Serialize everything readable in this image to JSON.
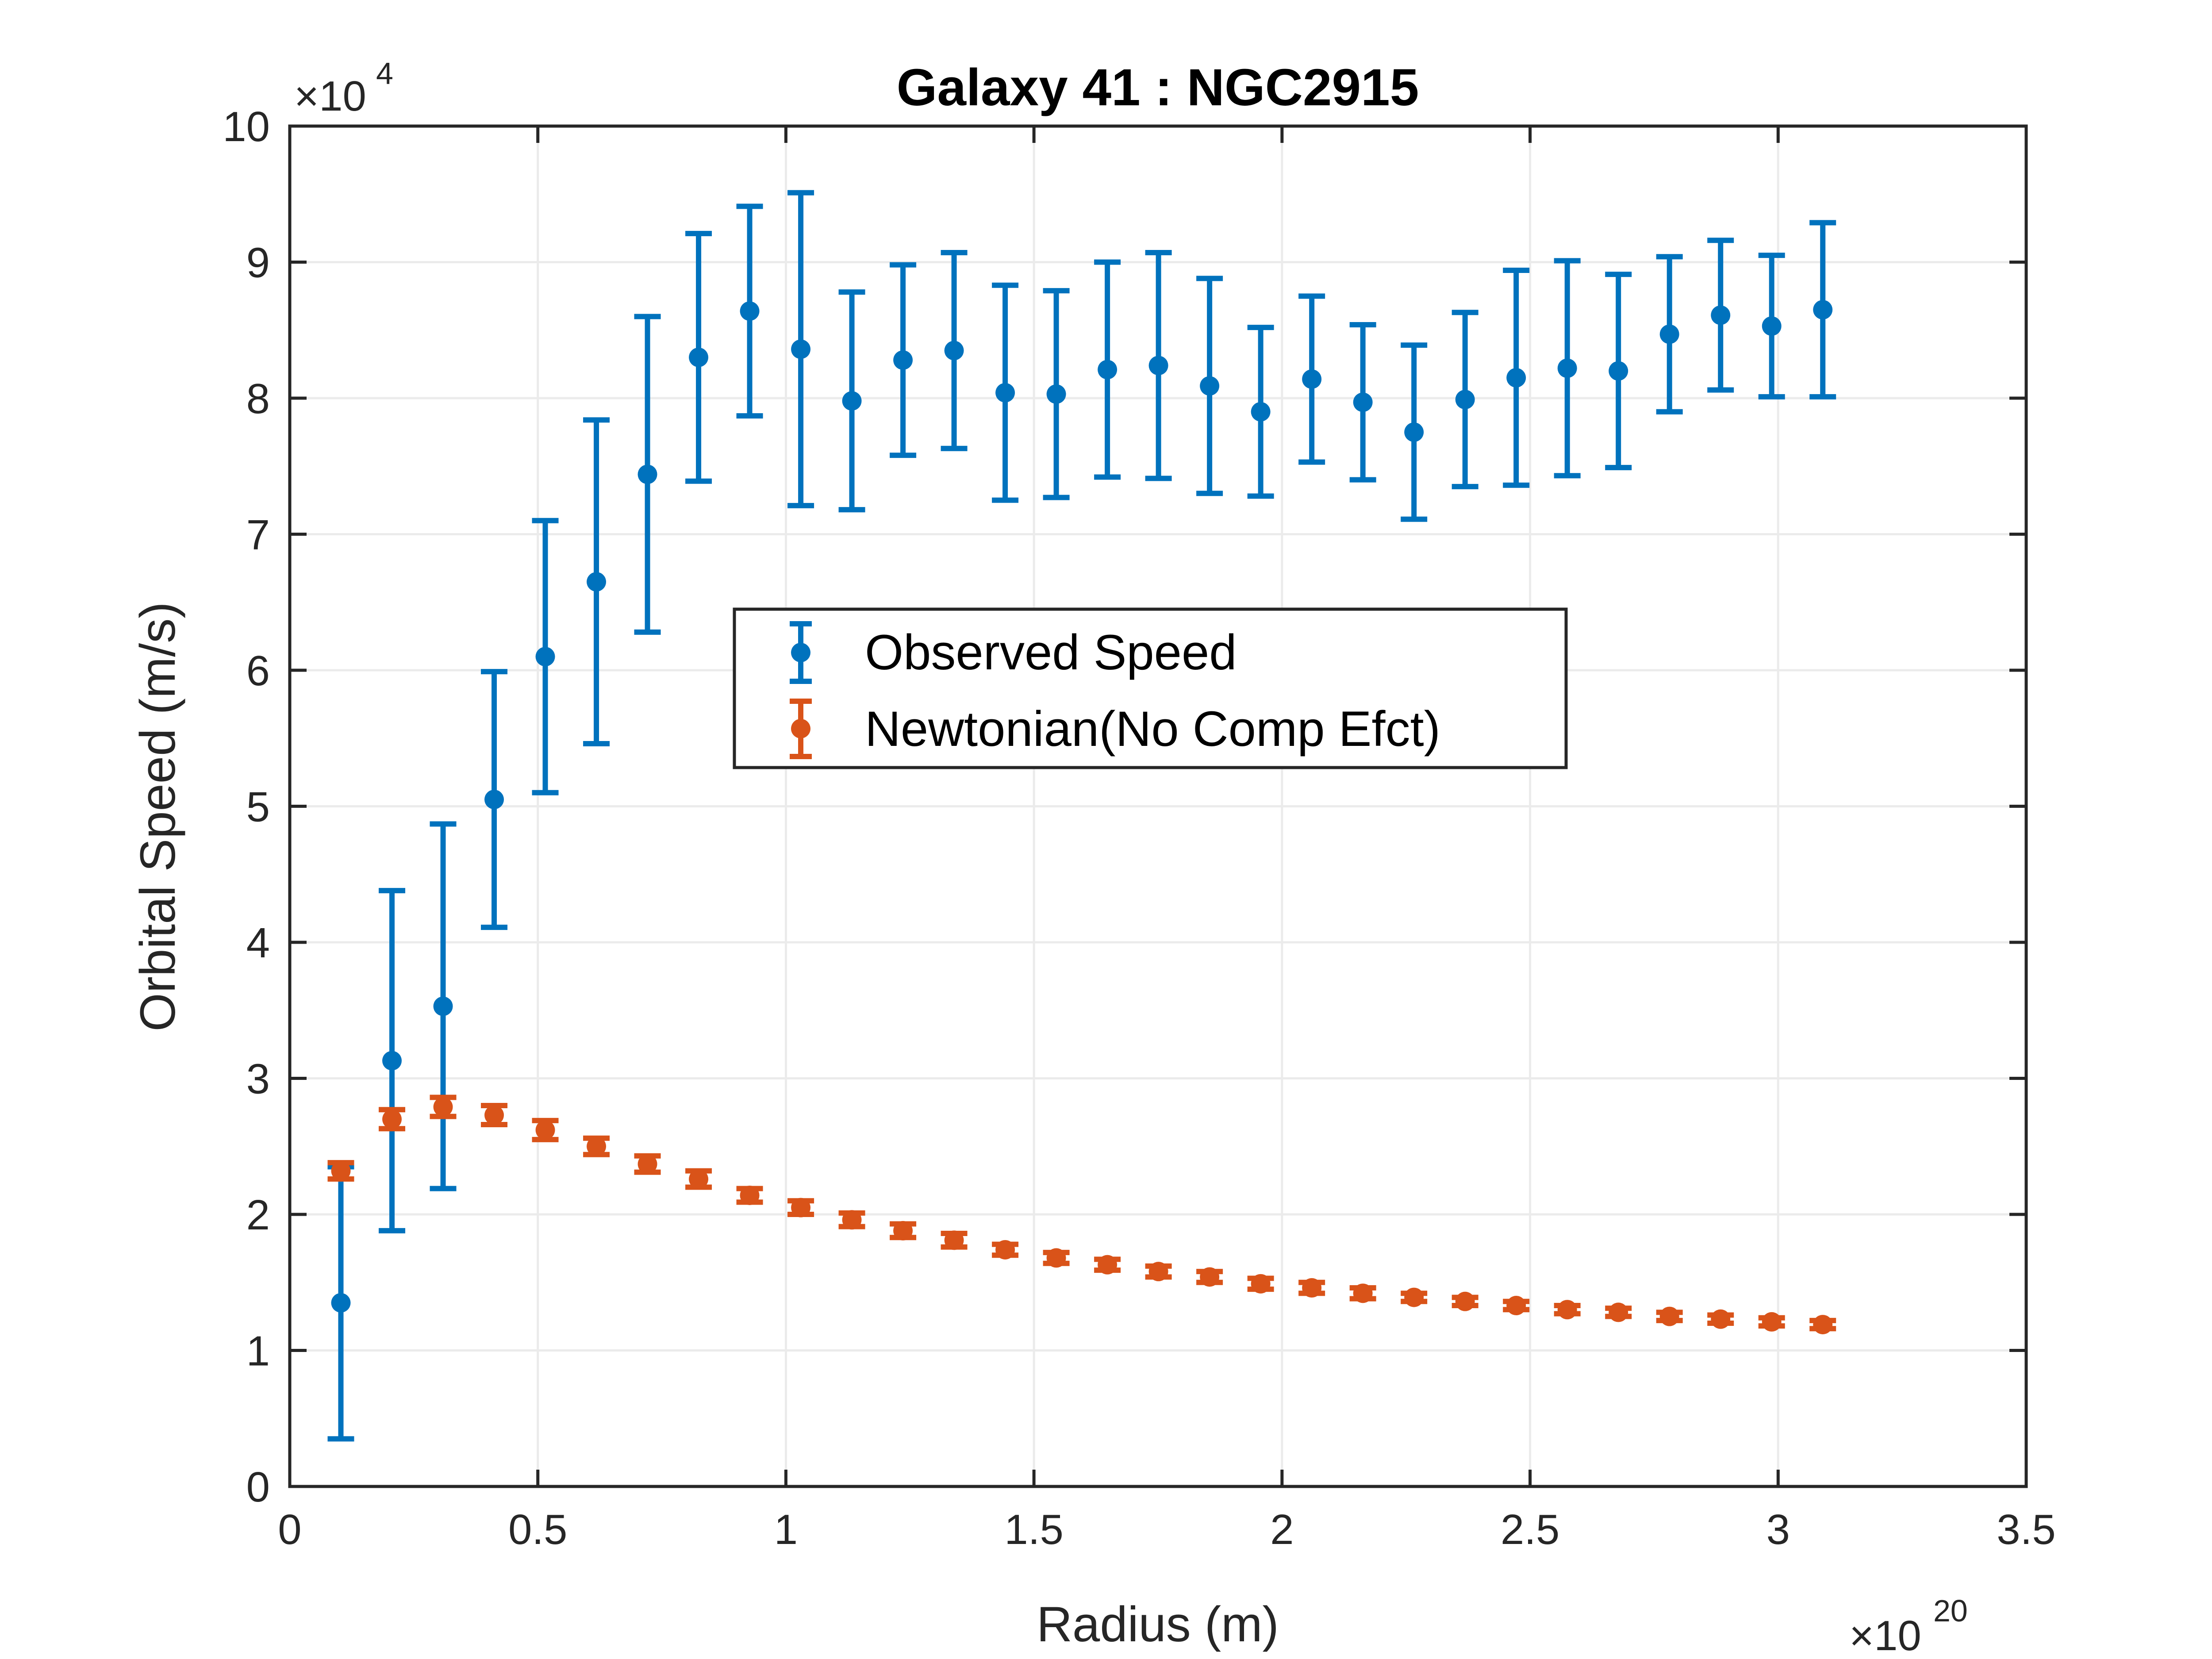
{
  "chart_data": {
    "type": "scatter",
    "title": "Galaxy 41 : NGC2915",
    "xlabel": "Radius (m)",
    "ylabel": "Orbital Speed (m/s)",
    "x_multiplier": {
      "base": "×10",
      "exp": "20"
    },
    "y_multiplier": {
      "base": "×10",
      "exp": "4"
    },
    "xlim": [
      0,
      3.5
    ],
    "ylim": [
      0,
      10
    ],
    "x_ticks": [
      0,
      0.5,
      1,
      1.5,
      2,
      2.5,
      3,
      3.5
    ],
    "x_tick_labels": [
      "0",
      "0.5",
      "1",
      "1.5",
      "2",
      "2.5",
      "3",
      "3.5"
    ],
    "y_ticks": [
      0,
      1,
      2,
      3,
      4,
      5,
      6,
      7,
      8,
      9,
      10
    ],
    "y_tick_labels": [
      "0",
      "1",
      "2",
      "3",
      "4",
      "5",
      "6",
      "7",
      "8",
      "9",
      "10"
    ],
    "grid": true,
    "legend_position": "center",
    "x": [
      0.103,
      0.206,
      0.309,
      0.412,
      0.515,
      0.618,
      0.721,
      0.824,
      0.927,
      1.03,
      1.133,
      1.236,
      1.339,
      1.442,
      1.545,
      1.648,
      1.751,
      1.854,
      1.957,
      2.06,
      2.163,
      2.266,
      2.369,
      2.472,
      2.575,
      2.678,
      2.781,
      2.884,
      2.987,
      3.09
    ],
    "series": [
      {
        "name": "Observed Speed",
        "color": "#0072BD",
        "values": [
          1.35,
          3.13,
          3.53,
          5.05,
          6.1,
          6.65,
          7.44,
          8.3,
          8.64,
          8.36,
          7.98,
          8.28,
          8.35,
          8.04,
          8.03,
          8.21,
          8.24,
          8.09,
          7.9,
          8.14,
          7.97,
          7.75,
          7.99,
          8.15,
          8.22,
          8.2,
          8.47,
          8.61,
          8.53,
          8.65
        ],
        "errors": [
          1.0,
          1.25,
          1.34,
          0.94,
          1.0,
          1.19,
          1.16,
          0.91,
          0.77,
          1.15,
          0.8,
          0.7,
          0.72,
          0.79,
          0.76,
          0.79,
          0.83,
          0.79,
          0.62,
          0.61,
          0.57,
          0.64,
          0.64,
          0.79,
          0.79,
          0.71,
          0.57,
          0.55,
          0.52,
          0.64
        ]
      },
      {
        "name": "Newtonian(No Comp Efct)",
        "color": "#D95319",
        "values": [
          2.32,
          2.7,
          2.79,
          2.73,
          2.62,
          2.5,
          2.37,
          2.26,
          2.14,
          2.05,
          1.96,
          1.88,
          1.81,
          1.74,
          1.68,
          1.63,
          1.58,
          1.54,
          1.49,
          1.46,
          1.42,
          1.39,
          1.36,
          1.33,
          1.3,
          1.28,
          1.25,
          1.23,
          1.21,
          1.19
        ],
        "errors": [
          0.06,
          0.07,
          0.07,
          0.07,
          0.07,
          0.06,
          0.06,
          0.06,
          0.05,
          0.05,
          0.05,
          0.05,
          0.05,
          0.04,
          0.04,
          0.04,
          0.04,
          0.04,
          0.04,
          0.04,
          0.04,
          0.03,
          0.03,
          0.03,
          0.03,
          0.03,
          0.03,
          0.03,
          0.03,
          0.03
        ]
      }
    ]
  }
}
